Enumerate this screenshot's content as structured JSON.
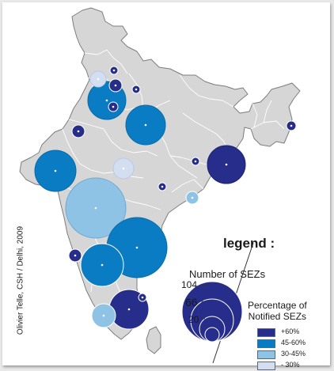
{
  "legend": {
    "title": "legend :",
    "size_title": "Number of SEZs",
    "size_labels": [
      "104",
      "66",
      "20"
    ],
    "pct_title_line1": "Percentage of",
    "pct_title_line2": "Notified SEZs",
    "classes": [
      {
        "label": "+60%",
        "color": "#262d8a"
      },
      {
        "label": "45-60%",
        "color": "#0a7cc3"
      },
      {
        "label": "30-45%",
        "color": "#8fc3e6"
      },
      {
        "label": "- 30%",
        "color": "#d3dff0"
      }
    ]
  },
  "credit": "Olivier Telle, CSH / Delhi, 2009",
  "colors": {
    "land": "#d6d6d6",
    "border": "#8a8a8a",
    "plus60": "#262d8a",
    "c45_60": "#0a7cc3",
    "c30_45": "#8fc3e6",
    "minus30": "#d3dff0"
  }
}
